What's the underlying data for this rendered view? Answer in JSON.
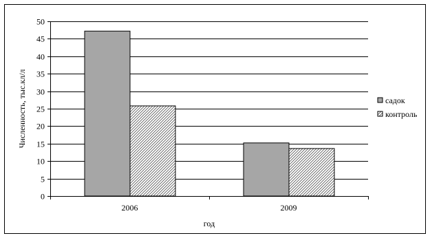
{
  "chart_data": {
    "type": "bar",
    "title": "",
    "xlabel": "год",
    "ylabel": "Численность, тыс.кл/л",
    "categories": [
      "2006",
      "2009"
    ],
    "series": [
      {
        "name": "садок",
        "values": [
          47.2,
          15.2
        ],
        "color": "#a6a6a6",
        "pattern": "solid"
      },
      {
        "name": "контроль",
        "values": [
          25.8,
          13.6
        ],
        "color": "#ffffff",
        "pattern": "dotted-hatch"
      }
    ],
    "ylim": [
      0,
      50
    ],
    "yticks": [
      0,
      5,
      10,
      15,
      20,
      25,
      30,
      35,
      40,
      45,
      50
    ],
    "grid": true,
    "legend_position": "right"
  }
}
